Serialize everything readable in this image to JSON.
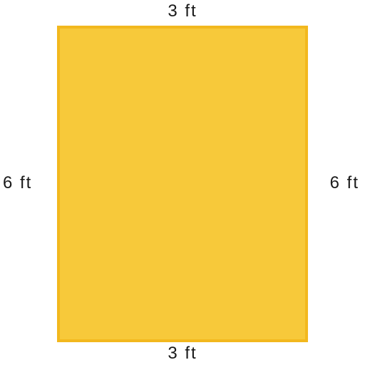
{
  "shape": {
    "type": "rectangle",
    "fill_color": "#f7c93a",
    "stroke_color": "#f2b81e"
  },
  "labels": {
    "top": "3 ft",
    "bottom": "3 ft",
    "left": "6 ft",
    "right": "6 ft"
  }
}
